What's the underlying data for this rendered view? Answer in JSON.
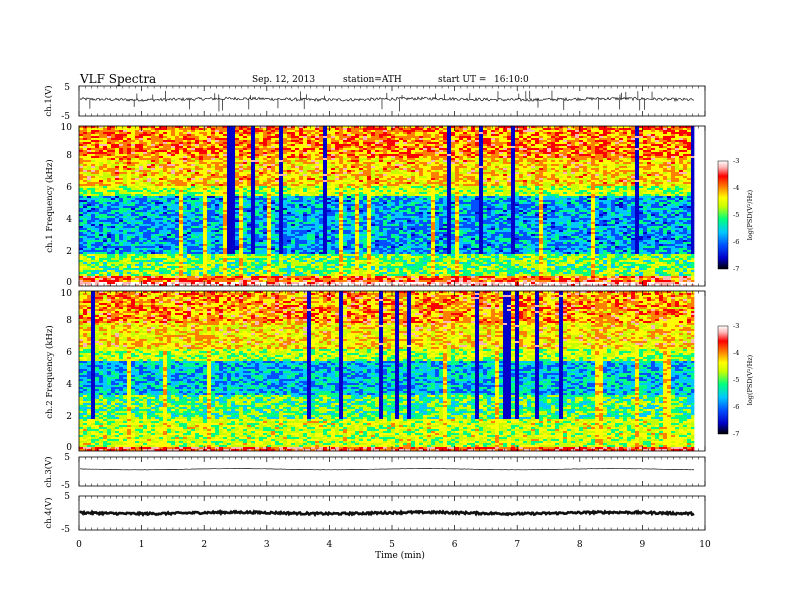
{
  "header": {
    "title": "VLF Spectra",
    "date": "Sep. 12, 2013",
    "station": "station=ATH",
    "start_label": "start UT =",
    "start_time": "16:10:0"
  },
  "colors": {
    "waveform": "#111111",
    "spectrogram_palette": [
      "#000000",
      "#0000c8",
      "#0050ff",
      "#00c8ff",
      "#00ff80",
      "#c8ff00",
      "#ffff00",
      "#ff8000",
      "#ff0000",
      "#ffb4b4",
      "#ffffff"
    ]
  },
  "chart_data": [
    {
      "type": "line",
      "panel": "ch1-waveform",
      "ylabel": "ch.1(V)",
      "ylim": [
        -5,
        5
      ],
      "yticks": [
        "5",
        "-5"
      ],
      "xlim": [
        0,
        10
      ],
      "data_end_min": 9.83,
      "baseline_v": 0.6,
      "noise_amplitude_v": 0.5,
      "spike_peak_v": 3.5,
      "spike_count_approx": 40
    },
    {
      "type": "heatmap",
      "panel": "ch1-spectrogram",
      "ylabel": "ch.1 Frequency (kHz)",
      "ylim": [
        0,
        10
      ],
      "yticks": [
        "0",
        "2",
        "4",
        "6",
        "8",
        "10"
      ],
      "xlim": [
        0,
        10
      ],
      "data_end_min": 9.83,
      "colorbar": {
        "label": "log(PSD(V²/Hz)",
        "range": [
          -7,
          -3
        ],
        "ticks": [
          "-3",
          "-4",
          "-5",
          "-6",
          "-7"
        ]
      },
      "bands_logpsd": [
        {
          "f_khz": [
            0.0,
            0.2
          ],
          "level": -3.2
        },
        {
          "f_khz": [
            0.2,
            0.6
          ],
          "level": -4.0
        },
        {
          "f_khz": [
            0.6,
            2.0
          ],
          "level": -5.2
        },
        {
          "f_khz": [
            2.0,
            5.6
          ],
          "level": -5.9
        },
        {
          "f_khz": [
            5.6,
            6.2
          ],
          "level": -5.0
        },
        {
          "f_khz": [
            6.2,
            8.0
          ],
          "level": -4.5
        },
        {
          "f_khz": [
            8.0,
            10.0
          ],
          "level": -4.2
        }
      ]
    },
    {
      "type": "heatmap",
      "panel": "ch2-spectrogram",
      "ylabel": "ch.2 Frequency (kHz)",
      "ylim": [
        0,
        10
      ],
      "yticks": [
        "0",
        "2",
        "4",
        "6",
        "8",
        "10"
      ],
      "xlim": [
        0,
        10
      ],
      "data_end_min": 9.83,
      "colorbar": {
        "label": "log(PSD(V²/Hz)",
        "range": [
          -7,
          -3
        ],
        "ticks": [
          "-3",
          "-4",
          "-5",
          "-6",
          "-7"
        ]
      },
      "bands_logpsd": [
        {
          "f_khz": [
            0.0,
            0.2
          ],
          "level": -3.8
        },
        {
          "f_khz": [
            0.2,
            2.0
          ],
          "level": -4.9
        },
        {
          "f_khz": [
            2.0,
            3.5
          ],
          "level": -5.3
        },
        {
          "f_khz": [
            3.5,
            5.6
          ],
          "level": -5.8
        },
        {
          "f_khz": [
            5.6,
            6.4
          ],
          "level": -5.0
        },
        {
          "f_khz": [
            6.4,
            8.0
          ],
          "level": -4.6
        },
        {
          "f_khz": [
            8.0,
            10.0
          ],
          "level": -4.3
        }
      ]
    },
    {
      "type": "line",
      "panel": "ch3-waveform",
      "ylabel": "ch.3(V)",
      "ylim": [
        -5,
        5
      ],
      "yticks": [
        "5",
        "-5"
      ],
      "xlim": [
        0,
        10
      ],
      "data_end_min": 9.83,
      "baseline_v": 0.8,
      "noise_amplitude_v": 0.05
    },
    {
      "type": "line",
      "panel": "ch4-waveform",
      "ylabel": "ch.4(V)",
      "ylim": [
        -5,
        5
      ],
      "yticks": [
        "5",
        "-5"
      ],
      "xlim": [
        0,
        10
      ],
      "data_end_min": 9.83,
      "baseline_v": 0.0,
      "noise_amplitude_v": 0.3
    }
  ],
  "x_axis": {
    "label": "Time (min)",
    "ticks": [
      "0",
      "1",
      "2",
      "3",
      "4",
      "5",
      "6",
      "7",
      "8",
      "9",
      "10"
    ]
  }
}
